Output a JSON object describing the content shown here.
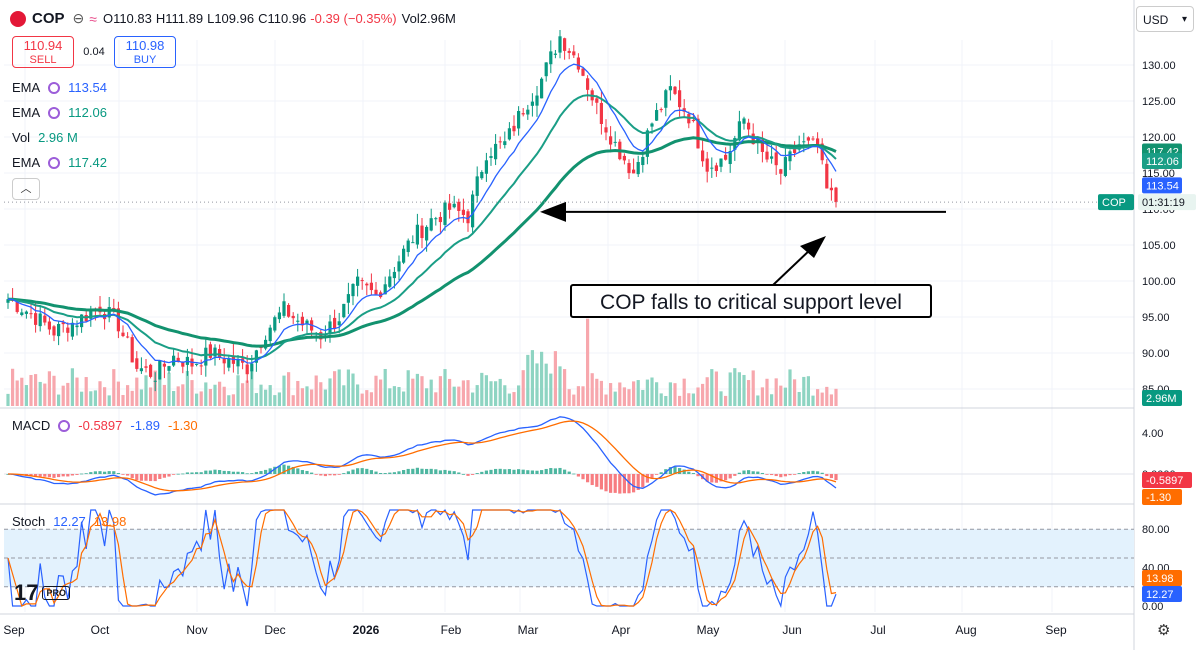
{
  "header": {
    "symbol": "COP",
    "open_label": "O",
    "open": "110.83",
    "high_label": "H",
    "high": "111.89",
    "low_label": "L",
    "low": "109.96",
    "close_label": "C",
    "close": "110.96",
    "change": "-0.39 (−0.35%)",
    "vol_label": "Vol",
    "vol": "2.96M"
  },
  "trade": {
    "sell_price": "110.94",
    "sell_label": "SELL",
    "spread": "0.04",
    "buy_price": "110.98",
    "buy_label": "BUY"
  },
  "indicators": [
    {
      "name": "EMA",
      "value": "113.54",
      "color": "#2962ff"
    },
    {
      "name": "EMA",
      "value": "112.06",
      "color": "#089981"
    },
    {
      "name": "Vol",
      "value": "2.96 M",
      "color": "#089981"
    },
    {
      "name": "EMA",
      "value": "117.42",
      "color": "#089981"
    }
  ],
  "macd_legend": {
    "name": "MACD",
    "v1": "-0.5897",
    "v2": "-1.89",
    "v3": "-1.30"
  },
  "stoch_legend": {
    "name": "Stoch",
    "k": "12.27",
    "d": "13.98"
  },
  "annotation": "COP falls to critical support level",
  "currency": "USD",
  "logo_text": "17",
  "logo_pro": "PRO",
  "colors": {
    "up": "#089981",
    "down": "#f23645",
    "ema_fast": "#2962ff",
    "ema_mid": "#1a9e86",
    "ema_slow": "#12926f",
    "macd": "#2962ff",
    "signal": "#ff6d00",
    "stoch_k": "#2962ff",
    "stoch_d": "#ff6d00"
  },
  "chart_data": {
    "type": "candlestick",
    "price_axis": {
      "ticks": [
        85,
        90,
        95,
        100,
        105,
        110,
        115,
        120,
        125,
        130
      ],
      "labels": [
        "85.00",
        "90.00",
        "95.00",
        "100.00",
        "105.00",
        "110.00",
        "115.00",
        "120.00",
        "125.00",
        "130.00"
      ]
    },
    "macd_axis": {
      "ticks": [
        4,
        0
      ],
      "labels": [
        "4.00",
        "0.0000"
      ]
    },
    "stoch_axis": {
      "ticks": [
        80,
        40,
        0
      ],
      "labels": [
        "80.00",
        "40.00",
        "0.00"
      ],
      "band": [
        20,
        80
      ]
    },
    "x_labels": [
      "Sep",
      "Oct",
      "Nov",
      "Dec",
      "2026",
      "Feb",
      "Mar",
      "Apr",
      "May",
      "Jun",
      "Jul",
      "Aug",
      "Sep"
    ],
    "tags": {
      "ema_slow": "117.42",
      "ema_fast": "113.54",
      "ema_mid": "112.06",
      "symbol": "COP",
      "countdown": "01:31:19",
      "vol": "2.96M",
      "macd": "-0.5897",
      "signal": "-1.30",
      "stoch_d": "13.98",
      "stoch_k": "12.27"
    },
    "price_anchors": [
      [
        0,
        97.5
      ],
      [
        5,
        95.5
      ],
      [
        10,
        93
      ],
      [
        15,
        94.5
      ],
      [
        20,
        96.5
      ],
      [
        24,
        94
      ],
      [
        28,
        88
      ],
      [
        32,
        87
      ],
      [
        36,
        89.5
      ],
      [
        40,
        88.5
      ],
      [
        44,
        90
      ],
      [
        48,
        89
      ],
      [
        52,
        88
      ],
      [
        56,
        93
      ],
      [
        60,
        96
      ],
      [
        64,
        94
      ],
      [
        68,
        92.5
      ],
      [
        72,
        95
      ],
      [
        76,
        99.5
      ],
      [
        80,
        98
      ],
      [
        84,
        102
      ],
      [
        88,
        106
      ],
      [
        92,
        108.5
      ],
      [
        96,
        110
      ],
      [
        100,
        109
      ],
      [
        104,
        118
      ],
      [
        108,
        119
      ],
      [
        112,
        124
      ],
      [
        116,
        128
      ],
      [
        120,
        134
      ],
      [
        124,
        130.5
      ],
      [
        128,
        124
      ],
      [
        132,
        119
      ],
      [
        136,
        115
      ],
      [
        140,
        122
      ],
      [
        144,
        126.5
      ],
      [
        148,
        123
      ],
      [
        152,
        116
      ],
      [
        156,
        117
      ],
      [
        160,
        122.5
      ],
      [
        164,
        117.5
      ],
      [
        168,
        115
      ],
      [
        172,
        119
      ],
      [
        176,
        118.5
      ],
      [
        178,
        112.5
      ],
      [
        180,
        111
      ]
    ],
    "support_level": 109.6,
    "volume_scale": "relative",
    "series_present": [
      "EMA (fast)",
      "EMA (mid)",
      "EMA (slow)",
      "Volume",
      "MACD",
      "Signal",
      "Histogram",
      "Stoch %K",
      "Stoch %D"
    ]
  }
}
